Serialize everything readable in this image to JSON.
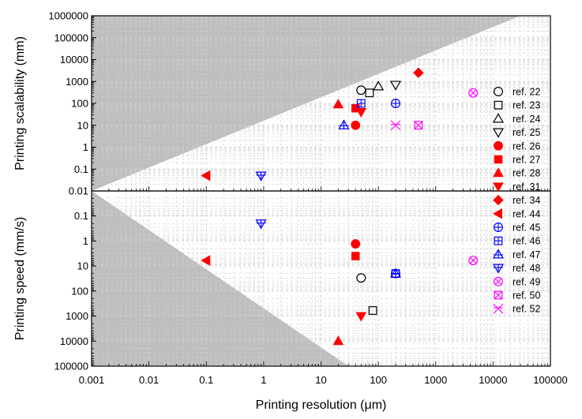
{
  "chart_data": {
    "type": "scatter",
    "x_axis": {
      "label": "Printing resolution (μm)",
      "scale": "log",
      "lim": [
        0.001,
        100000
      ],
      "tick_values": [
        0.001,
        0.01,
        0.1,
        1,
        10,
        100,
        1000,
        10000,
        100000
      ],
      "tick_labels": [
        "0.001",
        "0.01",
        "0.1",
        "1",
        "10",
        "100",
        "1000",
        "10000",
        "100000"
      ]
    },
    "panels": [
      {
        "id": "top",
        "ylabel": "Printing scalability (mm)",
        "yscale": "log",
        "ylim": [
          0.01,
          1000000
        ],
        "y_inverted": false,
        "y_tick_values": [
          0.01,
          0.1,
          1,
          10,
          100,
          1000,
          10000,
          100000,
          1000000
        ],
        "y_tick_labels": [
          "0.01",
          "0.1",
          "1",
          "10",
          "100",
          "1000",
          "10000",
          "100000",
          "1000000"
        ],
        "shaded_region": {
          "description": "excluded region above line",
          "line_points": [
            [
              0.001,
              0.01
            ],
            [
              30000,
              1000000
            ]
          ]
        },
        "points": [
          {
            "ref": "ref. 22",
            "x": 50,
            "y": 400
          },
          {
            "ref": "ref. 23",
            "x": 70,
            "y": 300
          },
          {
            "ref": "ref. 24",
            "x": 100,
            "y": 600
          },
          {
            "ref": "ref. 25",
            "x": 200,
            "y": 700
          },
          {
            "ref": "ref. 26",
            "x": 40,
            "y": 10
          },
          {
            "ref": "ref. 27",
            "x": 40,
            "y": 60
          },
          {
            "ref": "ref. 28",
            "x": 20,
            "y": 90
          },
          {
            "ref": "ref. 31",
            "x": 50,
            "y": 40
          },
          {
            "ref": "ref. 34",
            "x": 500,
            "y": 2500
          },
          {
            "ref": "ref. 44",
            "x": 0.1,
            "y": 0.05
          },
          {
            "ref": "ref. 45",
            "x": 200,
            "y": 100
          },
          {
            "ref": "ref. 46",
            "x": 50,
            "y": 100
          },
          {
            "ref": "ref. 47",
            "x": 25,
            "y": 10
          },
          {
            "ref": "ref. 48",
            "x": 0.9,
            "y": 0.05
          },
          {
            "ref": "ref. 49",
            "x": 4500,
            "y": 300
          },
          {
            "ref": "ref. 50",
            "x": 500,
            "y": 10
          },
          {
            "ref": "ref. 52",
            "x": 200,
            "y": 10
          }
        ]
      },
      {
        "id": "bottom",
        "ylabel": "Printing speed (mm/s)",
        "yscale": "log",
        "ylim": [
          0.01,
          100000
        ],
        "y_inverted": true,
        "y_tick_values": [
          0.1,
          1,
          10,
          100,
          1000,
          10000,
          100000
        ],
        "y_tick_labels": [
          "0.1",
          "1",
          "10",
          "100",
          "1000",
          "10000",
          "100000"
        ],
        "shaded_region": {
          "description": "excluded region below line",
          "line_points": [
            [
              0.001,
              0.01
            ],
            [
              30,
              100000
            ]
          ]
        },
        "points": [
          {
            "ref": "ref. 22",
            "x": 50,
            "y": 30
          },
          {
            "ref": "ref. 23",
            "x": 80,
            "y": 600
          },
          {
            "ref": "ref. 26",
            "x": 40,
            "y": 1.3
          },
          {
            "ref": "ref. 27",
            "x": 40,
            "y": 4
          },
          {
            "ref": "ref. 28",
            "x": 20,
            "y": 10000
          },
          {
            "ref": "ref. 31",
            "x": 50,
            "y": 1000
          },
          {
            "ref": "ref. 44",
            "x": 0.1,
            "y": 6
          },
          {
            "ref": "ref. 45",
            "x": 200,
            "y": 20
          },
          {
            "ref": "ref. 46",
            "x": 200,
            "y": 20
          },
          {
            "ref": "ref. 47",
            "x": 200,
            "y": 20
          },
          {
            "ref": "ref. 48",
            "x": 0.9,
            "y": 0.2
          },
          {
            "ref": "ref. 49",
            "x": 4500,
            "y": 6
          }
        ]
      }
    ],
    "legend": {
      "position": "right",
      "entries": [
        {
          "label": "ref. 22",
          "marker": "circle-open",
          "color": "#000000"
        },
        {
          "label": "ref. 23",
          "marker": "square-open",
          "color": "#000000"
        },
        {
          "label": "ref. 24",
          "marker": "triangle-up-open",
          "color": "#000000"
        },
        {
          "label": "ref. 25",
          "marker": "triangle-down-open",
          "color": "#000000"
        },
        {
          "label": "ref. 26",
          "marker": "circle-filled",
          "color": "#ff0000"
        },
        {
          "label": "ref. 27",
          "marker": "square-filled",
          "color": "#ff0000"
        },
        {
          "label": "ref. 28",
          "marker": "triangle-up-filled",
          "color": "#ff0000"
        },
        {
          "label": "ref. 31",
          "marker": "triangle-down-filled",
          "color": "#ff0000"
        },
        {
          "label": "ref. 34",
          "marker": "diamond-filled",
          "color": "#ff0000"
        },
        {
          "label": "ref. 44",
          "marker": "triangle-left-filled",
          "color": "#ff0000"
        },
        {
          "label": "ref. 45",
          "marker": "circle-plus",
          "color": "#0000ff"
        },
        {
          "label": "ref. 46",
          "marker": "square-plus",
          "color": "#0000ff"
        },
        {
          "label": "ref. 47",
          "marker": "triangle-up-plus",
          "color": "#0000ff"
        },
        {
          "label": "ref. 48",
          "marker": "triangle-down-plus",
          "color": "#0000ff"
        },
        {
          "label": "ref. 49",
          "marker": "circle-x",
          "color": "#ff00ff"
        },
        {
          "label": "ref. 50",
          "marker": "square-x",
          "color": "#ff00ff"
        },
        {
          "label": "ref. 52",
          "marker": "asterisk-x",
          "color": "#ff00ff"
        }
      ]
    }
  }
}
